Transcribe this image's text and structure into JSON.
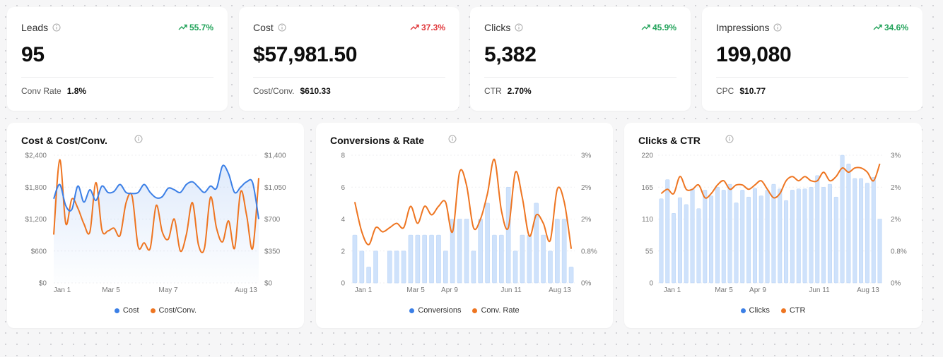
{
  "colors": {
    "blue": "#3b7fe6",
    "orange": "#ee7521",
    "bar_fill": "#cfe2fb",
    "up": "#22a35a",
    "down": "#e0383b"
  },
  "kpis": [
    {
      "title": "Leads",
      "trend": "55.7%",
      "direction": "up",
      "value": "95",
      "sub_label": "Conv Rate",
      "sub_value": "1.8%"
    },
    {
      "title": "Cost",
      "trend": "37.3%",
      "direction": "down",
      "value": "$57,981.50",
      "sub_label": "Cost/Conv.",
      "sub_value": "$610.33"
    },
    {
      "title": "Clicks",
      "trend": "45.9%",
      "direction": "up",
      "value": "5,382",
      "sub_label": "CTR",
      "sub_value": "2.70%"
    },
    {
      "title": "Impressions",
      "trend": "34.6%",
      "direction": "up",
      "value": "199,080",
      "sub_label": "CPC",
      "sub_value": "$10.77"
    }
  ],
  "chart_data": [
    {
      "type": "line",
      "title": "Cost & Cost/Conv.",
      "x_ticks": [
        "Jan 1",
        "Mar 5",
        "May 7",
        "Aug 13"
      ],
      "left_ticks": [
        "$0",
        "$600",
        "$1,200",
        "$1,800",
        "$2,400"
      ],
      "right_ticks": [
        "$0",
        "$350",
        "$700",
        "$1,050",
        "$1,400"
      ],
      "ylim_left": [
        0,
        2400
      ],
      "ylim_right": [
        0,
        1400
      ],
      "series": [
        {
          "name": "Cost",
          "axis": "left",
          "style": "area-line",
          "values": [
            1580,
            1850,
            1450,
            1380,
            1820,
            1520,
            1750,
            1550,
            1820,
            1700,
            1720,
            1850,
            1700,
            1680,
            1700,
            1850,
            1700,
            1600,
            1620,
            1780,
            1750,
            1700,
            1850,
            1900,
            1800,
            1700,
            1820,
            1780,
            2200,
            2050,
            1700,
            1800,
            1900,
            1880,
            1200
          ]
        },
        {
          "name": "Cost/Conv.",
          "axis": "right",
          "style": "line",
          "values": [
            530,
            1350,
            650,
            920,
            820,
            650,
            560,
            1100,
            580,
            570,
            600,
            520,
            880,
            950,
            400,
            440,
            380,
            850,
            560,
            480,
            700,
            350,
            530,
            880,
            420,
            380,
            940,
            600,
            450,
            680,
            380,
            1000,
            740,
            380,
            1150
          ]
        }
      ],
      "legend": [
        "Cost",
        "Cost/Conv."
      ]
    },
    {
      "type": "bar+line",
      "title": "Conversions & Rate",
      "x_ticks": [
        "Jan 1",
        "Mar 5",
        "Apr 9",
        "Jun 11",
        "Aug 13"
      ],
      "left_ticks": [
        "0",
        "2",
        "4",
        "6",
        "8"
      ],
      "right_ticks": [
        "0%",
        "0.8%",
        "2%",
        "2%",
        "3%"
      ],
      "ylim_left": [
        0,
        8
      ],
      "ylim_right": [
        0,
        3
      ],
      "bars": {
        "name": "Conversions",
        "values": [
          3,
          2,
          1,
          2,
          0,
          2,
          2,
          2,
          3,
          3,
          3,
          3,
          3,
          2,
          4,
          4,
          4,
          2,
          4,
          5,
          3,
          3,
          6,
          2,
          3,
          3,
          5,
          3,
          2,
          4,
          4,
          1
        ]
      },
      "line": {
        "name": "Conv. Rate",
        "values": [
          1.9,
          1.2,
          0.9,
          1.3,
          1.2,
          1.3,
          1.4,
          1.3,
          1.8,
          1.4,
          1.8,
          1.6,
          1.8,
          1.9,
          1.2,
          2.6,
          2.3,
          1.3,
          1.5,
          2.1,
          2.9,
          1.7,
          1.3,
          2.6,
          2.0,
          1.1,
          1.6,
          1.4,
          1.0,
          2.2,
          1.9,
          0.8
        ]
      },
      "legend": [
        "Conversions",
        "Conv. Rate"
      ]
    },
    {
      "type": "bar+line",
      "title": "Clicks & CTR",
      "x_ticks": [
        "Jan 1",
        "Mar 5",
        "Apr 9",
        "Jun 11",
        "Aug 13"
      ],
      "left_ticks": [
        "0",
        "55",
        "110",
        "165",
        "220"
      ],
      "right_ticks": [
        "0%",
        "0.8%",
        "2%",
        "2%",
        "3%"
      ],
      "ylim_left": [
        0,
        220
      ],
      "ylim_right": [
        0,
        3
      ],
      "bars": {
        "name": "Clicks",
        "values": [
          145,
          178,
          120,
          147,
          135,
          162,
          128,
          160,
          150,
          165,
          160,
          170,
          138,
          160,
          148,
          163,
          150,
          160,
          170,
          162,
          142,
          160,
          162,
          162,
          165,
          185,
          165,
          170,
          148,
          220,
          205,
          180,
          180,
          172,
          182,
          110
        ]
      },
      "line": {
        "name": "CTR",
        "values": [
          2.1,
          2.2,
          2.1,
          2.5,
          2.2,
          2.2,
          2.3,
          2.0,
          2.1,
          2.3,
          2.4,
          2.2,
          2.3,
          2.3,
          2.2,
          2.3,
          2.4,
          2.2,
          2.0,
          2.1,
          2.4,
          2.5,
          2.4,
          2.5,
          2.4,
          2.4,
          2.6,
          2.4,
          2.5,
          2.7,
          2.6,
          2.7,
          2.7,
          2.6,
          2.4,
          2.8
        ]
      },
      "legend": [
        "Clicks",
        "CTR"
      ]
    }
  ]
}
